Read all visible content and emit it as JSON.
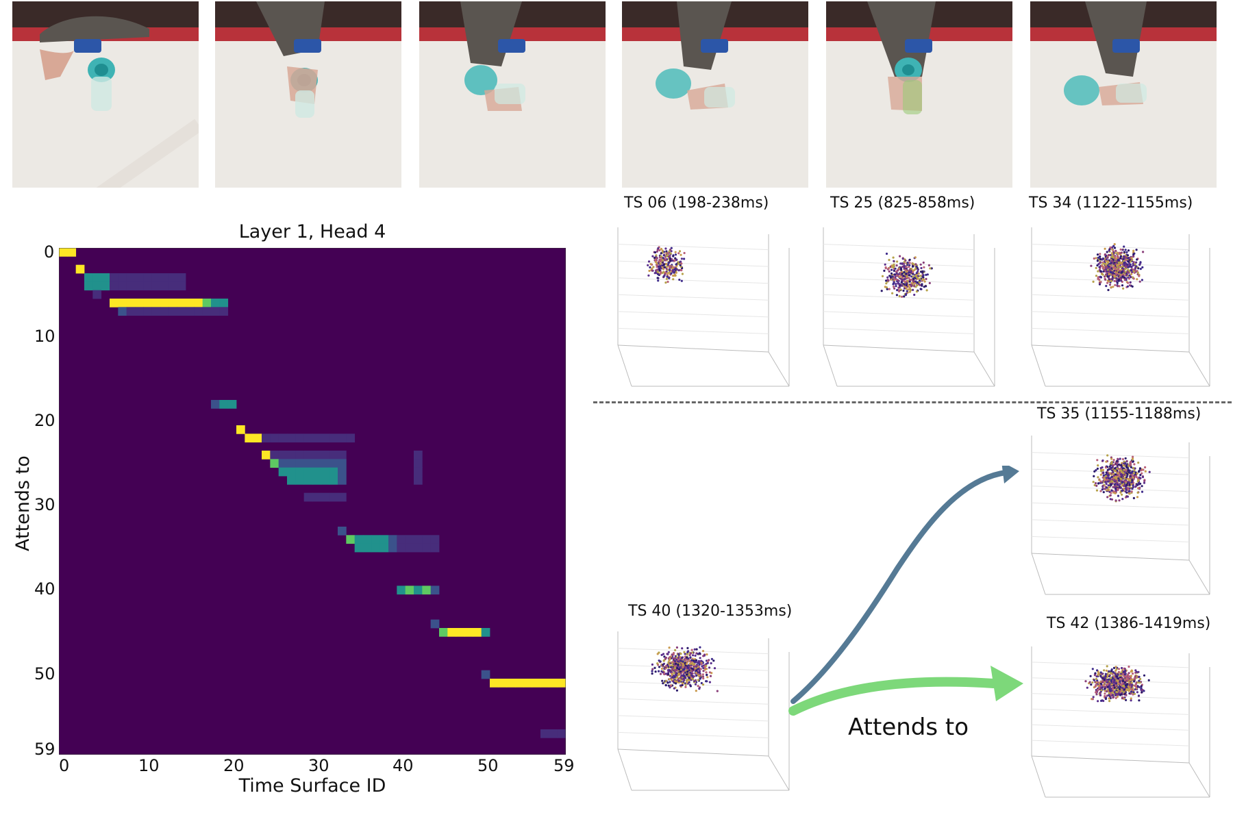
{
  "photo_strip": {
    "frames": [
      "frame-1",
      "frame-2",
      "frame-3",
      "frame-4",
      "frame-5",
      "frame-6"
    ]
  },
  "heatmap": {
    "title": "Layer 1, Head 4",
    "xlabel": "Time Surface ID",
    "ylabel": "Attends to",
    "x_ticks": [
      "0",
      "10",
      "20",
      "30",
      "40",
      "50",
      "59"
    ],
    "y_ticks": [
      "0",
      "10",
      "20",
      "30",
      "40",
      "50",
      "59"
    ],
    "colors": {
      "background": "#440154",
      "low": "#3b528b",
      "mid": "#21918c",
      "high": "#5ec962",
      "max": "#fde725"
    }
  },
  "panels": {
    "ts06": {
      "title": "TS 06 (198-238ms)"
    },
    "ts25": {
      "title": "TS 25 (825-858ms)"
    },
    "ts34": {
      "title": "TS 34 (1122-1155ms)"
    },
    "ts35": {
      "title": "TS 35 (1155-1188ms)"
    },
    "ts40": {
      "title": "TS 40 (1320-1353ms)"
    },
    "ts42": {
      "title": "TS 42 (1386-1419ms)"
    }
  },
  "arrows": {
    "label": "Attends to",
    "blue_color": "#557a95",
    "green_color": "#7dd87a"
  },
  "chart_data": {
    "type": "heatmap",
    "title": "Layer 1, Head 4",
    "xlabel": "Time Surface ID",
    "ylabel": "Attends to",
    "xlim": [
      0,
      59
    ],
    "ylim": [
      0,
      59
    ],
    "cells": [
      {
        "x": 0,
        "y": 0,
        "v": 1.0
      },
      {
        "x": 1,
        "y": 0,
        "v": 1.0
      },
      {
        "x": 2,
        "y": 2,
        "v": 0.95
      },
      {
        "x": 3,
        "y": 3,
        "v": 0.55
      },
      {
        "x": 4,
        "y": 3,
        "v": 0.55
      },
      {
        "x": 5,
        "y": 3,
        "v": 0.55
      },
      {
        "x": 3,
        "y": 4,
        "v": 0.5
      },
      {
        "x": 4,
        "y": 4,
        "v": 0.5
      },
      {
        "x": 5,
        "y": 4,
        "v": 0.5
      },
      {
        "x": 6,
        "y": 3,
        "v": 0.12
      },
      {
        "x": 7,
        "y": 3,
        "v": 0.12
      },
      {
        "x": 8,
        "y": 3,
        "v": 0.12
      },
      {
        "x": 9,
        "y": 3,
        "v": 0.12
      },
      {
        "x": 10,
        "y": 3,
        "v": 0.12
      },
      {
        "x": 11,
        "y": 3,
        "v": 0.12
      },
      {
        "x": 12,
        "y": 3,
        "v": 0.12
      },
      {
        "x": 13,
        "y": 3,
        "v": 0.12
      },
      {
        "x": 14,
        "y": 3,
        "v": 0.12
      },
      {
        "x": 6,
        "y": 4,
        "v": 0.08
      },
      {
        "x": 7,
        "y": 4,
        "v": 0.08
      },
      {
        "x": 8,
        "y": 4,
        "v": 0.08
      },
      {
        "x": 9,
        "y": 4,
        "v": 0.08
      },
      {
        "x": 10,
        "y": 4,
        "v": 0.08
      },
      {
        "x": 11,
        "y": 4,
        "v": 0.08
      },
      {
        "x": 12,
        "y": 4,
        "v": 0.08
      },
      {
        "x": 13,
        "y": 4,
        "v": 0.08
      },
      {
        "x": 14,
        "y": 4,
        "v": 0.08
      },
      {
        "x": 4,
        "y": 5,
        "v": 0.15
      },
      {
        "x": 6,
        "y": 6,
        "v": 1.0
      },
      {
        "x": 7,
        "y": 6,
        "v": 0.97
      },
      {
        "x": 8,
        "y": 6,
        "v": 0.97
      },
      {
        "x": 9,
        "y": 6,
        "v": 0.97
      },
      {
        "x": 10,
        "y": 6,
        "v": 0.97
      },
      {
        "x": 11,
        "y": 6,
        "v": 0.97
      },
      {
        "x": 12,
        "y": 6,
        "v": 0.97
      },
      {
        "x": 13,
        "y": 6,
        "v": 0.97
      },
      {
        "x": 14,
        "y": 6,
        "v": 0.97
      },
      {
        "x": 15,
        "y": 6,
        "v": 0.97
      },
      {
        "x": 16,
        "y": 6,
        "v": 0.95
      },
      {
        "x": 17,
        "y": 6,
        "v": 0.75
      },
      {
        "x": 18,
        "y": 6,
        "v": 0.55
      },
      {
        "x": 19,
        "y": 6,
        "v": 0.55
      },
      {
        "x": 7,
        "y": 7,
        "v": 0.2
      },
      {
        "x": 8,
        "y": 7,
        "v": 0.15
      },
      {
        "x": 9,
        "y": 7,
        "v": 0.15
      },
      {
        "x": 10,
        "y": 7,
        "v": 0.15
      },
      {
        "x": 11,
        "y": 7,
        "v": 0.15
      },
      {
        "x": 12,
        "y": 7,
        "v": 0.15
      },
      {
        "x": 13,
        "y": 7,
        "v": 0.15
      },
      {
        "x": 14,
        "y": 7,
        "v": 0.12
      },
      {
        "x": 15,
        "y": 7,
        "v": 0.12
      },
      {
        "x": 16,
        "y": 7,
        "v": 0.15
      },
      {
        "x": 17,
        "y": 7,
        "v": 0.12
      },
      {
        "x": 18,
        "y": 7,
        "v": 0.12
      },
      {
        "x": 19,
        "y": 7,
        "v": 0.12
      },
      {
        "x": 18,
        "y": 18,
        "v": 0.3
      },
      {
        "x": 19,
        "y": 18,
        "v": 0.45
      },
      {
        "x": 20,
        "y": 18,
        "v": 0.5
      },
      {
        "x": 21,
        "y": 21,
        "v": 1.0
      },
      {
        "x": 22,
        "y": 22,
        "v": 0.95
      },
      {
        "x": 23,
        "y": 22,
        "v": 0.95
      },
      {
        "x": 24,
        "y": 22,
        "v": 0.15
      },
      {
        "x": 25,
        "y": 22,
        "v": 0.12
      },
      {
        "x": 26,
        "y": 22,
        "v": 0.1
      },
      {
        "x": 27,
        "y": 22,
        "v": 0.1
      },
      {
        "x": 28,
        "y": 22,
        "v": 0.1
      },
      {
        "x": 29,
        "y": 22,
        "v": 0.1
      },
      {
        "x": 30,
        "y": 22,
        "v": 0.1
      },
      {
        "x": 31,
        "y": 22,
        "v": 0.1
      },
      {
        "x": 32,
        "y": 22,
        "v": 0.1
      },
      {
        "x": 33,
        "y": 22,
        "v": 0.1
      },
      {
        "x": 34,
        "y": 22,
        "v": 0.1
      },
      {
        "x": 24,
        "y": 24,
        "v": 0.9
      },
      {
        "x": 25,
        "y": 24,
        "v": 0.15
      },
      {
        "x": 26,
        "y": 24,
        "v": 0.15
      },
      {
        "x": 27,
        "y": 24,
        "v": 0.15
      },
      {
        "x": 28,
        "y": 24,
        "v": 0.15
      },
      {
        "x": 29,
        "y": 24,
        "v": 0.15
      },
      {
        "x": 30,
        "y": 24,
        "v": 0.15
      },
      {
        "x": 31,
        "y": 24,
        "v": 0.15
      },
      {
        "x": 32,
        "y": 24,
        "v": 0.15
      },
      {
        "x": 33,
        "y": 24,
        "v": 0.15
      },
      {
        "x": 25,
        "y": 25,
        "v": 0.8
      },
      {
        "x": 26,
        "y": 25,
        "v": 0.3
      },
      {
        "x": 27,
        "y": 25,
        "v": 0.3
      },
      {
        "x": 28,
        "y": 25,
        "v": 0.3
      },
      {
        "x": 29,
        "y": 25,
        "v": 0.3
      },
      {
        "x": 30,
        "y": 25,
        "v": 0.3
      },
      {
        "x": 31,
        "y": 25,
        "v": 0.3
      },
      {
        "x": 32,
        "y": 25,
        "v": 0.25
      },
      {
        "x": 33,
        "y": 25,
        "v": 0.2
      },
      {
        "x": 26,
        "y": 26,
        "v": 0.6
      },
      {
        "x": 27,
        "y": 26,
        "v": 0.45
      },
      {
        "x": 28,
        "y": 26,
        "v": 0.4
      },
      {
        "x": 29,
        "y": 26,
        "v": 0.4
      },
      {
        "x": 30,
        "y": 26,
        "v": 0.4
      },
      {
        "x": 31,
        "y": 26,
        "v": 0.4
      },
      {
        "x": 32,
        "y": 26,
        "v": 0.4
      },
      {
        "x": 33,
        "y": 26,
        "v": 0.3
      },
      {
        "x": 27,
        "y": 27,
        "v": 0.45
      },
      {
        "x": 28,
        "y": 27,
        "v": 0.45
      },
      {
        "x": 29,
        "y": 27,
        "v": 0.45
      },
      {
        "x": 30,
        "y": 27,
        "v": 0.5
      },
      {
        "x": 31,
        "y": 27,
        "v": 0.5
      },
      {
        "x": 32,
        "y": 27,
        "v": 0.5
      },
      {
        "x": 33,
        "y": 27,
        "v": 0.3
      },
      {
        "x": 29,
        "y": 29,
        "v": 0.1
      },
      {
        "x": 30,
        "y": 29,
        "v": 0.1
      },
      {
        "x": 31,
        "y": 29,
        "v": 0.1
      },
      {
        "x": 32,
        "y": 29,
        "v": 0.1
      },
      {
        "x": 33,
        "y": 29,
        "v": 0.1
      },
      {
        "x": 42,
        "y": 24,
        "v": 0.1
      },
      {
        "x": 42,
        "y": 25,
        "v": 0.1
      },
      {
        "x": 42,
        "y": 26,
        "v": 0.1
      },
      {
        "x": 42,
        "y": 27,
        "v": 0.1
      },
      {
        "x": 33,
        "y": 33,
        "v": 0.3
      },
      {
        "x": 34,
        "y": 34,
        "v": 0.75
      },
      {
        "x": 35,
        "y": 34,
        "v": 0.5
      },
      {
        "x": 36,
        "y": 34,
        "v": 0.5
      },
      {
        "x": 37,
        "y": 34,
        "v": 0.5
      },
      {
        "x": 38,
        "y": 34,
        "v": 0.45
      },
      {
        "x": 39,
        "y": 34,
        "v": 0.3
      },
      {
        "x": 35,
        "y": 35,
        "v": 0.55
      },
      {
        "x": 36,
        "y": 35,
        "v": 0.6
      },
      {
        "x": 37,
        "y": 35,
        "v": 0.6
      },
      {
        "x": 38,
        "y": 35,
        "v": 0.6
      },
      {
        "x": 39,
        "y": 35,
        "v": 0.3
      },
      {
        "x": 40,
        "y": 34,
        "v": 0.15
      },
      {
        "x": 41,
        "y": 34,
        "v": 0.12
      },
      {
        "x": 42,
        "y": 34,
        "v": 0.15
      },
      {
        "x": 43,
        "y": 34,
        "v": 0.15
      },
      {
        "x": 44,
        "y": 34,
        "v": 0.1
      },
      {
        "x": 40,
        "y": 35,
        "v": 0.15
      },
      {
        "x": 41,
        "y": 35,
        "v": 0.12
      },
      {
        "x": 42,
        "y": 35,
        "v": 0.15
      },
      {
        "x": 43,
        "y": 35,
        "v": 0.15
      },
      {
        "x": 44,
        "y": 35,
        "v": 0.1
      },
      {
        "x": 40,
        "y": 40,
        "v": 0.65
      },
      {
        "x": 41,
        "y": 40,
        "v": 0.85
      },
      {
        "x": 42,
        "y": 40,
        "v": 0.6
      },
      {
        "x": 43,
        "y": 40,
        "v": 0.8
      },
      {
        "x": 44,
        "y": 40,
        "v": 0.25
      },
      {
        "x": 44,
        "y": 44,
        "v": 0.25
      },
      {
        "x": 45,
        "y": 45,
        "v": 0.85
      },
      {
        "x": 46,
        "y": 45,
        "v": 0.97
      },
      {
        "x": 47,
        "y": 45,
        "v": 0.97
      },
      {
        "x": 48,
        "y": 45,
        "v": 0.97
      },
      {
        "x": 49,
        "y": 45,
        "v": 0.95
      },
      {
        "x": 50,
        "y": 45,
        "v": 0.55
      },
      {
        "x": 50,
        "y": 50,
        "v": 0.35
      },
      {
        "x": 51,
        "y": 51,
        "v": 1.0
      },
      {
        "x": 52,
        "y": 51,
        "v": 1.0
      },
      {
        "x": 53,
        "y": 51,
        "v": 1.0
      },
      {
        "x": 54,
        "y": 51,
        "v": 1.0
      },
      {
        "x": 55,
        "y": 51,
        "v": 1.0
      },
      {
        "x": 56,
        "y": 51,
        "v": 1.0
      },
      {
        "x": 57,
        "y": 51,
        "v": 1.0
      },
      {
        "x": 58,
        "y": 51,
        "v": 1.0
      },
      {
        "x": 59,
        "y": 51,
        "v": 1.0
      },
      {
        "x": 57,
        "y": 57,
        "v": 0.08
      },
      {
        "x": 58,
        "y": 57,
        "v": 0.08
      },
      {
        "x": 59,
        "y": 57,
        "v": 0.08
      }
    ]
  }
}
